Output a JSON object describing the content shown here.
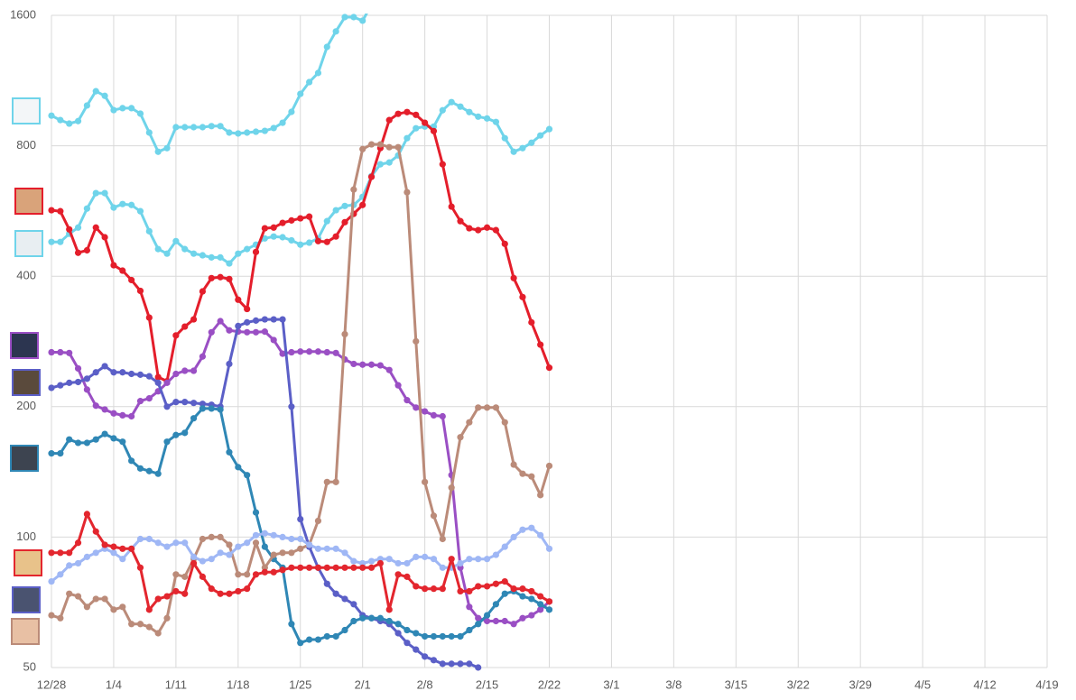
{
  "chart_data": {
    "type": "line",
    "yscale": "log",
    "ylim": [
      50,
      1600
    ],
    "yticks": [
      50,
      100,
      200,
      400,
      800,
      1600
    ],
    "xlim": [
      "12/28",
      "4/19"
    ],
    "xticks": [
      "12/28",
      "1/4",
      "1/11",
      "1/18",
      "1/25",
      "2/1",
      "2/8",
      "2/15",
      "2/22",
      "3/1",
      "3/8",
      "3/15",
      "3/22",
      "3/29",
      "4/5",
      "4/12",
      "4/19"
    ],
    "grid": true,
    "x": [
      "12/28",
      "12/29",
      "12/30",
      "12/31",
      "1/1",
      "1/2",
      "1/3",
      "1/4",
      "1/5",
      "1/6",
      "1/7",
      "1/8",
      "1/9",
      "1/10",
      "1/11",
      "1/12",
      "1/13",
      "1/14",
      "1/15",
      "1/16",
      "1/17",
      "1/18",
      "1/19",
      "1/20",
      "1/21",
      "1/22",
      "1/23",
      "1/24",
      "1/25",
      "1/26",
      "1/27",
      "1/28",
      "1/29",
      "1/30",
      "1/31",
      "2/1",
      "2/2",
      "2/3",
      "2/4",
      "2/5",
      "2/6",
      "2/7",
      "2/8",
      "2/9",
      "2/10",
      "2/11",
      "2/12",
      "2/13",
      "2/14",
      "2/15",
      "2/16",
      "2/17",
      "2/18",
      "2/19",
      "2/20",
      "2/21",
      "2/22"
    ],
    "series": [
      {
        "color": "#6fd4ea",
        "values": [
          939,
          917,
          900,
          912,
          991,
          1069,
          1043,
          967,
          977,
          977,
          949,
          858,
          775,
          790,
          883,
          883,
          883,
          883,
          888,
          888,
          858,
          854,
          858,
          862,
          866,
          879,
          904,
          958,
          1054,
          1122,
          1178,
          1353,
          1469,
          1585,
          1585,
          1555,
          1694,
          null,
          null,
          null,
          null,
          null,
          null,
          null,
          null,
          null,
          null,
          null,
          null,
          null,
          null,
          null,
          null,
          null,
          null,
          null,
          null
        ]
      },
      {
        "color": "#6fd4ea",
        "values": [
          480,
          480,
          501,
          518,
          573,
          622,
          622,
          576,
          587,
          584,
          565,
          508,
          462,
          451,
          482,
          462,
          451,
          447,
          442,
          442,
          428,
          451,
          462,
          473,
          489,
          494,
          492,
          484,
          473,
          478,
          489,
          536,
          568,
          581,
          584,
          610,
          681,
          725,
          732,
          760,
          833,
          878,
          886,
          886,
          966,
          1009,
          985,
          957,
          934,
          925,
          908,
          833,
          775,
          790,
          813,
          845,
          874
        ]
      },
      {
        "color": "#e41e2b",
        "values": [
          568,
          565,
          513,
          453,
          459,
          518,
          492,
          424,
          412,
          392,
          370,
          321,
          234,
          229,
          292,
          306,
          318,
          369,
          396,
          398,
          394,
          353,
          336,
          455,
          516,
          518,
          531,
          538,
          544,
          549,
          482,
          480,
          494,
          533,
          557,
          584,
          678,
          790,
          917,
          948,
          957,
          943,
          904,
          865,
          725,
          579,
          536,
          516,
          511,
          518,
          511,
          475,
          396,
          358,
          313,
          278,
          246
        ]
      },
      {
        "color": "#9a4fc4",
        "values": [
          267,
          267,
          266,
          245,
          219,
          201,
          197,
          193,
          191,
          190,
          206,
          209,
          217,
          227,
          238,
          242,
          242,
          261,
          297,
          315,
          300,
          298,
          297,
          297,
          298,
          285,
          265,
          267,
          268,
          268,
          268,
          267,
          266,
          257,
          251,
          250,
          250,
          249,
          243,
          224,
          207,
          199,
          195,
          191,
          190,
          139,
          85,
          69,
          65,
          64,
          64,
          64,
          63,
          65,
          66,
          68,
          71
        ]
      },
      {
        "color": "#5b5fc7",
        "values": [
          221,
          224,
          227,
          228,
          232,
          240,
          248,
          240,
          240,
          238,
          237,
          235,
          227,
          200,
          205,
          205,
          204,
          203,
          202,
          200,
          251,
          307,
          313,
          316,
          318,
          318,
          318,
          200,
          110,
          95,
          85,
          78,
          74,
          72,
          70,
          66,
          65,
          64,
          63,
          60,
          57,
          55,
          53,
          52,
          51,
          51,
          51,
          51,
          50,
          null,
          null,
          null,
          null,
          null,
          null,
          null,
          null
        ]
      },
      {
        "color": "#2f87b5",
        "values": [
          156,
          156,
          168,
          165,
          165,
          168,
          173,
          169,
          166,
          150,
          144,
          142,
          140,
          166,
          172,
          174,
          188,
          198,
          198,
          197,
          157,
          145,
          139,
          114,
          95,
          89,
          85,
          63,
          57,
          58,
          58,
          59,
          59,
          61,
          64,
          65,
          65,
          65,
          64,
          63,
          61,
          60,
          59,
          59,
          59,
          59,
          59,
          61,
          63,
          66,
          70,
          74,
          75,
          73,
          72,
          70,
          68
        ]
      },
      {
        "color": "#bb8b79",
        "values": [
          66,
          65,
          74,
          73,
          69,
          72,
          72,
          68,
          69,
          63,
          63,
          62,
          60,
          65,
          82,
          81,
          89,
          99,
          100,
          100,
          96,
          82,
          82,
          97,
          85,
          91,
          92,
          92,
          94,
          96,
          109,
          134,
          134,
          294,
          634,
          786,
          806,
          806,
          794,
          794,
          625,
          283,
          134,
          112,
          99,
          130,
          170,
          184,
          199,
          199,
          199,
          184,
          147,
          140,
          138,
          125,
          146
        ]
      },
      {
        "color": "#9fb7f5",
        "values": [
          79,
          82,
          86,
          87,
          90,
          92,
          94,
          92,
          89,
          94,
          99,
          99,
          97,
          95,
          97,
          97,
          90,
          88,
          89,
          92,
          91,
          95,
          97,
          101,
          102,
          101,
          100,
          99,
          99,
          96,
          94,
          94,
          94,
          92,
          88,
          87,
          88,
          89,
          89,
          87,
          87,
          90,
          90,
          89,
          85,
          85,
          87,
          89,
          89,
          89,
          91,
          95,
          100,
          104,
          105,
          101,
          94
        ]
      },
      {
        "color": "#e3262e",
        "values": [
          92,
          92,
          92,
          97,
          113,
          103,
          96,
          95,
          94,
          94,
          85,
          68,
          72,
          73,
          75,
          74,
          87,
          81,
          76,
          74,
          74,
          75,
          76,
          82,
          83,
          83,
          84,
          85,
          85,
          85,
          85,
          85,
          85,
          85,
          85,
          85,
          85,
          87,
          68,
          82,
          81,
          77,
          76,
          76,
          76,
          89,
          75,
          75,
          77,
          77,
          78,
          79,
          76,
          76,
          75,
          73,
          71
        ]
      }
    ]
  }
}
